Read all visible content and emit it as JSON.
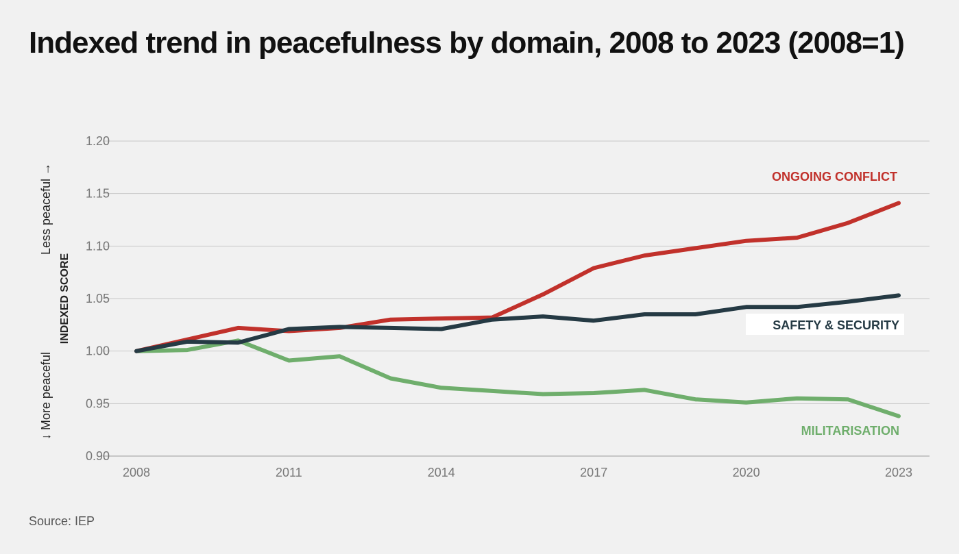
{
  "title": "Indexed trend in peacefulness by domain, 2008 to 2023 (2008=1)",
  "source": "Source: IEP",
  "y_axis": {
    "label": "INDEXED SCORE",
    "upper_annotation": "Less peaceful",
    "lower_annotation": "More peaceful"
  },
  "colors": {
    "ongoing_conflict": "#c1312b",
    "safety_security": "#253a44",
    "militarisation": "#6fae6c",
    "grid": "#c8c8c8",
    "background": "#f1f1f1"
  },
  "chart_data": {
    "type": "line",
    "title": "Indexed trend in peacefulness by domain, 2008 to 2023 (2008=1)",
    "xlabel": "",
    "ylabel": "INDEXED SCORE",
    "x": [
      2008,
      2009,
      2010,
      2011,
      2012,
      2013,
      2014,
      2015,
      2016,
      2017,
      2018,
      2019,
      2020,
      2021,
      2022,
      2023
    ],
    "x_ticks": [
      "2008",
      "2011",
      "2014",
      "2017",
      "2020",
      "2023"
    ],
    "y_ticks": [
      "0.90",
      "0.95",
      "1.00",
      "1.05",
      "1.10",
      "1.15",
      "1.20"
    ],
    "ylim": [
      0.9,
      1.2
    ],
    "xlim": [
      2008,
      2023
    ],
    "grid": "horizontal",
    "legend": "inline labels",
    "series": [
      {
        "name": "ONGOING CONFLICT",
        "color_key": "ongoing_conflict",
        "values": [
          1.0,
          1.011,
          1.022,
          1.019,
          1.022,
          1.03,
          1.031,
          1.032,
          1.054,
          1.079,
          1.091,
          1.098,
          1.105,
          1.108,
          1.122,
          1.141
        ]
      },
      {
        "name": "SAFETY & SECURITY",
        "color_key": "safety_security",
        "values": [
          1.0,
          1.009,
          1.008,
          1.021,
          1.023,
          1.022,
          1.021,
          1.03,
          1.033,
          1.029,
          1.035,
          1.035,
          1.042,
          1.042,
          1.047,
          1.053
        ]
      },
      {
        "name": "MILITARISATION",
        "color_key": "militarisation",
        "values": [
          1.0,
          1.001,
          1.01,
          0.991,
          0.995,
          0.974,
          0.965,
          0.962,
          0.959,
          0.96,
          0.963,
          0.954,
          0.951,
          0.955,
          0.954,
          0.938
        ]
      }
    ]
  }
}
